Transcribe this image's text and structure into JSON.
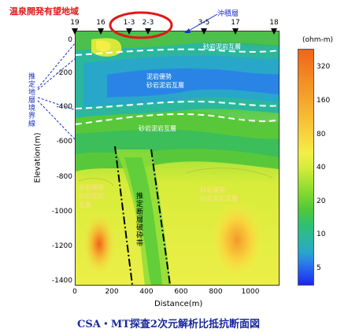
{
  "chart_data": {
    "type": "heatmap",
    "title": "CSA・MT探査2次元解析比抵抗断面図",
    "xlabel": "Distance(m)",
    "ylabel": "Elevation(m)",
    "x_ticks": [
      "0",
      "200",
      "400",
      "600",
      "800",
      "1000"
    ],
    "y_ticks": [
      "0",
      "-200",
      "-400",
      "-600",
      "-800",
      "-1000",
      "-1200",
      "-1400"
    ],
    "xlim": [
      0,
      1150
    ],
    "ylim": [
      -1420,
      0
    ],
    "colorbar": {
      "unit": "(ohm-m)",
      "labels": [
        "320",
        "160",
        "80",
        "40",
        "20",
        "10",
        "5"
      ],
      "colors": [
        "#f06418",
        "#f38a24",
        "#f6ad2e",
        "#f9d23c",
        "#f3ef46",
        "#d5ec3c",
        "#a9e234",
        "#7bd630",
        "#4fc83a",
        "#33c06e",
        "#2ab79e",
        "#28a7c8",
        "#2a84e6",
        "#2454f0",
        "#1a28f0"
      ]
    },
    "stations": [
      "19",
      "16",
      "1-3",
      "2-3",
      "3-5",
      "17",
      "18"
    ]
  },
  "annotations": {
    "hot_spring_area": "温泉開発有望地域",
    "alluvium": "沖積層",
    "boundary": "推定地層境界線",
    "layer1": "砂岩泥岩互層",
    "layer2a": "泥岩優勢",
    "layer2b": "砂岩泥岩互層",
    "layer3": "砂岩泥岩互層",
    "left_a": "砂岩優勢",
    "left_b": "砂岩泥岩",
    "left_c": "互層",
    "right_a": "砂岩優勢",
    "right_b": "砂岩泥岩互層",
    "fault": "推定断層破砕帯"
  },
  "colors": {
    "hot_spring_red": "#e01818",
    "blue_text": "#1a30c8",
    "title_blue": "#1a2a9a"
  }
}
